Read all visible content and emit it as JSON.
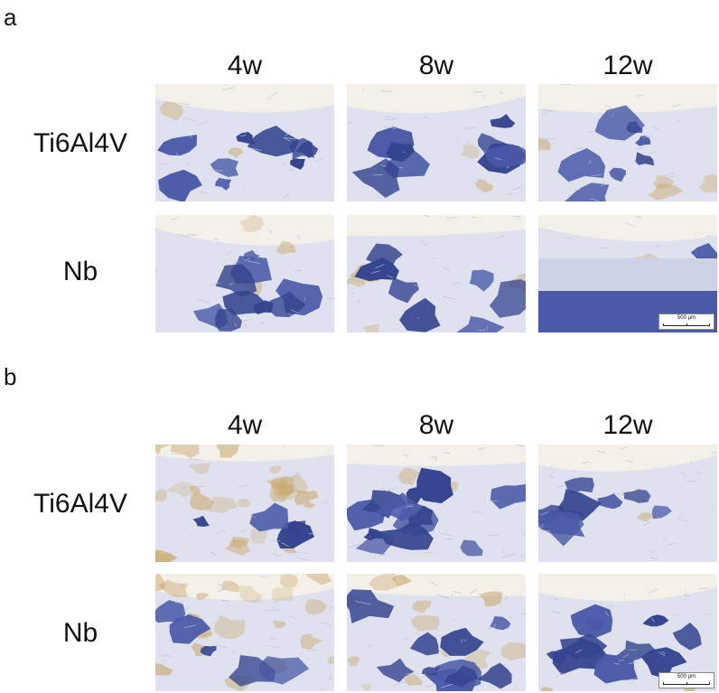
{
  "panels": [
    {
      "letter": "a",
      "columns": [
        "4w",
        "8w",
        "12w"
      ],
      "rows": [
        "Ti6Al4V",
        "Nb"
      ],
      "scale_bar": "500 µm"
    },
    {
      "letter": "b",
      "columns": [
        "4w",
        "8w",
        "12w"
      ],
      "rows": [
        "Ti6Al4V",
        "Nb"
      ],
      "scale_bar": "500 µm"
    }
  ],
  "colors": {
    "tissue_blue": "#4a5aa8",
    "tissue_blue_dark": "#34448f",
    "background_matrix": "#dfe2ee",
    "brown_stain": "#c9a566"
  }
}
